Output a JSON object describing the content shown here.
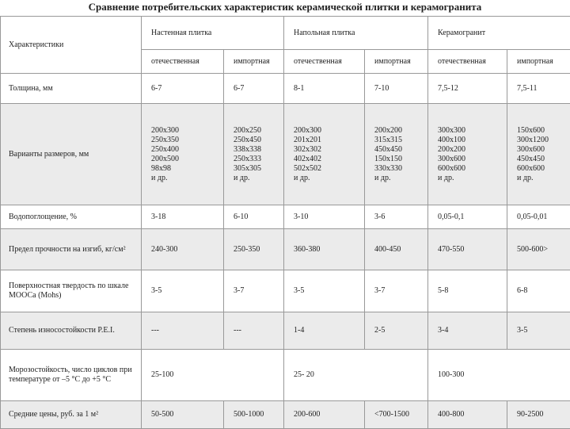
{
  "title": "Сравнение потребительских характеристик керамической плитки и керамогранита",
  "table": {
    "header": {
      "characteristics": "Характеристики",
      "groups": [
        "Настенная плитка",
        "Напольная плитка",
        "Керамогранит"
      ],
      "subheaders": [
        "отечественная",
        "импортная",
        "отечественная",
        "импортная",
        "отечественная",
        "импортная"
      ]
    },
    "rows": [
      {
        "label": "Толщина, мм",
        "cells": [
          "6-7",
          "6-7",
          "8-1",
          "7-10",
          "7,5-12",
          "7,5-11"
        ]
      },
      {
        "label": "Варианты размеров, мм",
        "cells": [
          "200х300\n250х350\n250х400\n200х500\n98х98\nи др.",
          "200х250\n250х450\n338х338\n250х333\n305х305\nи др.",
          "200х300\n201х201\n302х302\n402х402\n502х502\nи др.",
          "200х200\n315х315\n450х450\n150х150\n330х330\nи др.",
          "300х300\n400х100\n200х200\n300х600\n600х600\nи др.",
          "150х600\n300х1200\n300х600\n450х450\n600х600\nи др."
        ]
      },
      {
        "label": "Водопоглощение, %",
        "cells": [
          "3-18",
          "6-10",
          "3-10",
          "3-6",
          "0,05-0,1",
          "0,05-0,01"
        ]
      },
      {
        "label": "Предел прочности на изгиб, кг/см²",
        "cells": [
          "240-300",
          "250-350",
          "360-380",
          "400-450",
          "470-550",
          "500-600>"
        ]
      },
      {
        "label": "Поверхностная твердость по шкале МООСа (Mohs)",
        "cells": [
          "3-5",
          "3-7",
          "3-5",
          "3-7",
          "5-8",
          "6-8"
        ]
      },
      {
        "label": "Степень износостойкости P.E.I.",
        "cells": [
          "---",
          "---",
          "1-4",
          "2-5",
          "3-4",
          "3-5"
        ]
      },
      {
        "label": "Морозостойкость, число циклов при температуре от –5 °С до +5 °С",
        "cells": [
          "25-100",
          "25- 20",
          "100-300"
        ]
      },
      {
        "label": "Средние цены, руб. за 1 м²",
        "cells": [
          "50-500",
          "500-1000",
          "200-600",
          "<700-1500",
          "400-800",
          "90-2500"
        ]
      }
    ]
  }
}
